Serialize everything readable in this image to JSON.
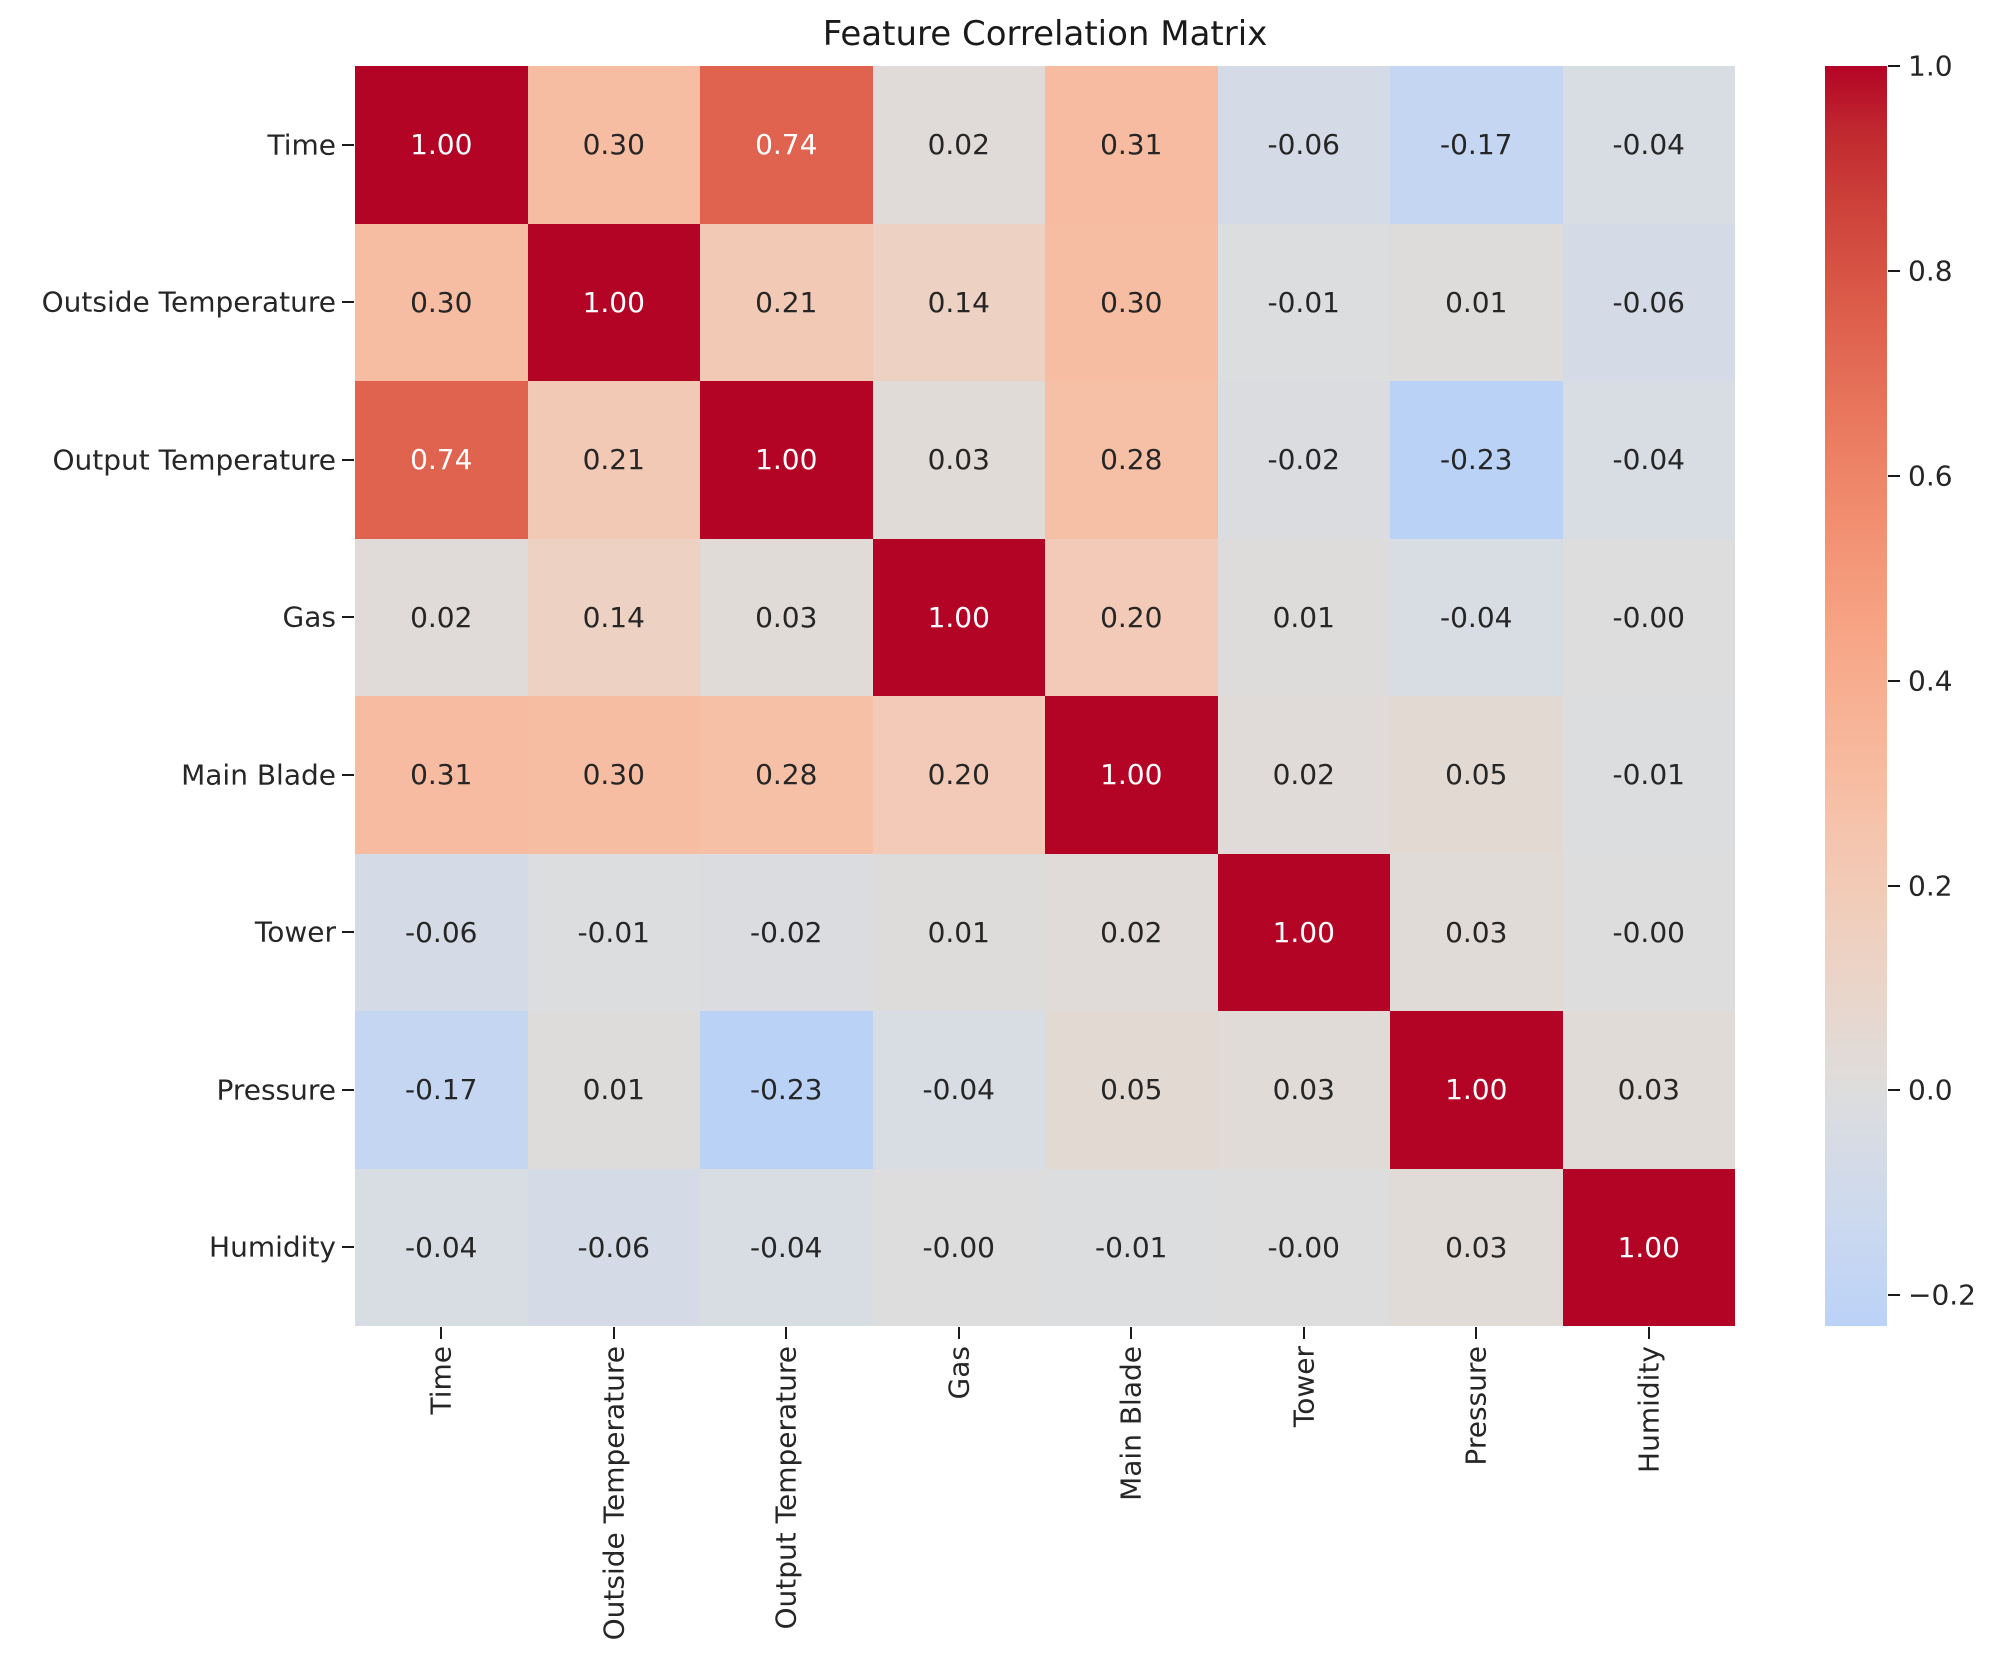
{
  "title": "Feature Correlation Matrix",
  "chart_data": {
    "type": "heatmap",
    "title": "Feature Correlation Matrix",
    "labels": [
      "Time",
      "Outside Temperature",
      "Output Temperature",
      "Gas",
      "Main Blade",
      "Tower",
      "Pressure",
      "Humidity"
    ],
    "matrix": [
      [
        "1.00",
        "0.30",
        "0.74",
        "0.02",
        "0.31",
        "-0.06",
        "-0.17",
        "-0.04"
      ],
      [
        "0.30",
        "1.00",
        "0.21",
        "0.14",
        "0.30",
        "-0.01",
        "0.01",
        "-0.06"
      ],
      [
        "0.74",
        "0.21",
        "1.00",
        "0.03",
        "0.28",
        "-0.02",
        "-0.23",
        "-0.04"
      ],
      [
        "0.02",
        "0.14",
        "0.03",
        "1.00",
        "0.20",
        "0.01",
        "-0.04",
        "-0.00"
      ],
      [
        "0.31",
        "0.30",
        "0.28",
        "0.20",
        "1.00",
        "0.02",
        "0.05",
        "-0.01"
      ],
      [
        "-0.06",
        "-0.01",
        "-0.02",
        "0.01",
        "0.02",
        "1.00",
        "0.03",
        "-0.00"
      ],
      [
        "-0.17",
        "0.01",
        "-0.23",
        "-0.04",
        "0.05",
        "0.03",
        "1.00",
        "0.03"
      ],
      [
        "-0.04",
        "-0.06",
        "-0.04",
        "-0.00",
        "-0.01",
        "-0.00",
        "0.03",
        "1.00"
      ]
    ],
    "colorbar": {
      "tick_labels": [
        "1.0",
        "0.8",
        "0.6",
        "0.4",
        "0.2",
        "0.0",
        "−0.2"
      ],
      "tick_values": [
        1.0,
        0.8,
        0.6,
        0.4,
        0.2,
        0.0,
        -0.2
      ],
      "vmin": -0.23,
      "vmax": 1.0
    },
    "colormap_name": "coolwarm",
    "colormap_center": 0,
    "colormap_stops": [
      [
        0.375,
        "#b8d0f9"
      ],
      [
        0.40625,
        "#c2d5f4"
      ],
      [
        0.4375,
        "#ccd9ee"
      ],
      [
        0.46875,
        "#d5dbe6"
      ],
      [
        0.5,
        "#dddddd"
      ],
      [
        0.53125,
        "#e5d8d1"
      ],
      [
        0.5625,
        "#ecd3c5"
      ],
      [
        0.59375,
        "#f1ccb9"
      ],
      [
        0.625,
        "#f5c4ad"
      ],
      [
        0.65625,
        "#f7bba0"
      ],
      [
        0.6875,
        "#f7b194"
      ],
      [
        0.71875,
        "#f7a687"
      ],
      [
        0.75,
        "#f49a7b"
      ],
      [
        0.78125,
        "#f18d6f"
      ],
      [
        0.8125,
        "#ec7f63"
      ],
      [
        0.84375,
        "#e57058"
      ],
      [
        0.875,
        "#de604d"
      ],
      [
        0.90625,
        "#d55042"
      ],
      [
        0.9375,
        "#cb3e38"
      ],
      [
        0.96875,
        "#c0282f"
      ],
      [
        1.0,
        "#b40426"
      ]
    ],
    "annotation_dark_color": "#262626",
    "annotation_light_color": "#ffffff",
    "axis_color": "#1a1a1a"
  }
}
